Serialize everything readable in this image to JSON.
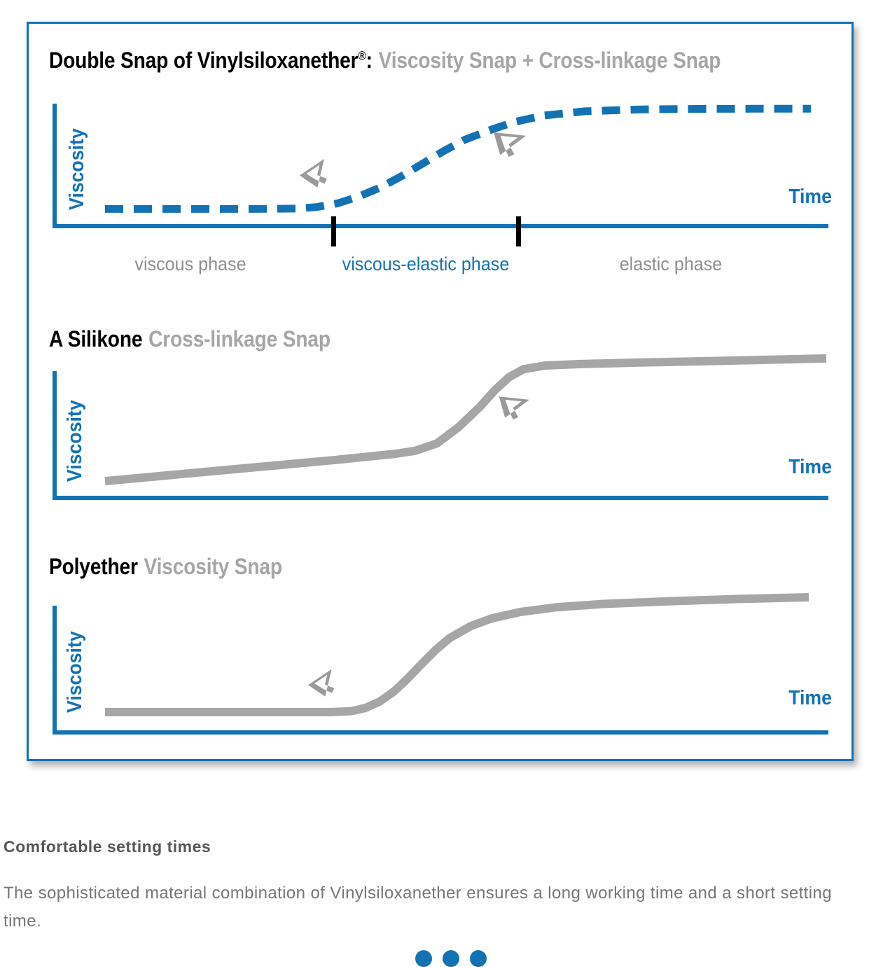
{
  "figure": {
    "title1": {
      "black": "Double Snap of Vinylsiloxanether",
      "reg": "®",
      "colon": ":",
      "gray": "Viscosity Snap + Cross-linkage Snap"
    },
    "title2": {
      "black": "A Silikone",
      "gray": "Cross-linkage Snap"
    },
    "title3": {
      "black": "Polyether",
      "gray": "Viscosity Snap"
    },
    "axis": {
      "y": "Viscosity",
      "x": "Time"
    },
    "phase_labels": [
      "viscous phase",
      "viscous-elastic phase",
      "elastic phase"
    ]
  },
  "caption": {
    "heading": "Comfortable setting times",
    "body": "The sophisticated material combination of Vinylsiloxanether ensures a long working time and a short setting time."
  },
  "carousel": {
    "dot_count": 3
  },
  "colors": {
    "accent_blue": "#1272b4",
    "curve_gray": "#a6a6a6",
    "title_gray": "#a6a6a6",
    "phase_gray": "#8f8f8f",
    "arrow_gray": "#9a9a9a",
    "tick_black": "#000000",
    "heading_gray": "#575757",
    "body_gray": "#767676"
  },
  "chart_data": [
    {
      "type": "line",
      "title": "Double Snap of Vinylsiloxanether®: Viscosity Snap + Cross-linkage Snap",
      "xlabel": "Time",
      "ylabel": "Viscosity",
      "style": "dashed",
      "color": "#1272b4",
      "axis_numeric": false,
      "x_range_normalized": [
        0,
        100
      ],
      "y_range_normalized": [
        0,
        100
      ],
      "x": [
        0,
        7,
        14,
        21,
        27,
        30,
        33,
        36,
        39,
        42,
        45,
        48,
        51,
        55,
        58,
        62,
        68,
        76,
        84,
        92,
        100
      ],
      "y": [
        12,
        12,
        12,
        12,
        12.3,
        13.5,
        16.5,
        22,
        29,
        38,
        48,
        58,
        67,
        75.5,
        81,
        86,
        89.5,
        91,
        91.4,
        91.5,
        91.5
      ],
      "phase_boundaries_x": [
        32.3,
        58.5
      ],
      "annotations": [
        "viscous phase",
        "viscous-elastic phase",
        "elastic phase"
      ],
      "grid": false,
      "legend": "none"
    },
    {
      "type": "line",
      "title": "A Silikone Cross-linkage Snap",
      "xlabel": "Time",
      "ylabel": "Viscosity",
      "style": "solid",
      "color": "#a6a6a6",
      "axis_numeric": false,
      "x": [
        0,
        8,
        16,
        24,
        32,
        40,
        43,
        46,
        49,
        52,
        54,
        56,
        58,
        61,
        66,
        74,
        82,
        91,
        100
      ],
      "y": [
        11.4,
        15,
        18.6,
        22.2,
        25.8,
        29.8,
        32,
        37,
        48,
        62,
        73,
        82,
        87.5,
        90,
        91,
        92,
        92.8,
        93.8,
        94.8
      ],
      "grid": false,
      "legend": "none"
    },
    {
      "type": "line",
      "title": "Polyether Viscosity Snap",
      "xlabel": "Time",
      "ylabel": "Viscosity",
      "style": "solid",
      "color": "#a6a6a6",
      "axis_numeric": false,
      "x": [
        0,
        8,
        16,
        24,
        32,
        35,
        37,
        39,
        41,
        43,
        45,
        47,
        49,
        52,
        55,
        59,
        64,
        71,
        80,
        90,
        100
      ],
      "y": [
        14.5,
        14.5,
        14.5,
        14.5,
        14.5,
        15.2,
        17.5,
        22,
        29,
        38.5,
        49,
        59,
        67.5,
        76,
        81.5,
        86,
        89.3,
        91.8,
        93.6,
        95.3,
        96.5
      ],
      "grid": false,
      "legend": "none"
    }
  ]
}
